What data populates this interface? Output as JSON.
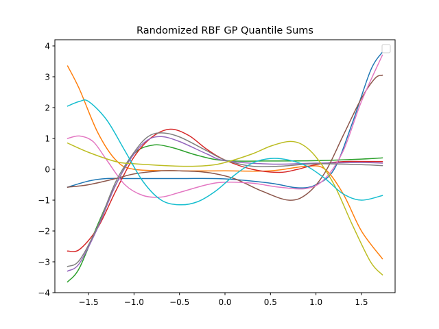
{
  "chart_data": {
    "type": "line",
    "title": "Randomized RBF GP Quantile Sums",
    "xlabel": "",
    "ylabel": "",
    "xlim": [
      -1.87,
      1.87
    ],
    "ylim": [
      -4.0,
      4.2
    ],
    "xticks": [
      -1.5,
      -1.0,
      -0.5,
      0.0,
      0.5,
      1.0,
      1.5
    ],
    "xtick_labels": [
      "−1.5",
      "−1.0",
      "−0.5",
      "0.0",
      "0.5",
      "1.0",
      "1.5"
    ],
    "yticks": [
      -4,
      -3,
      -2,
      -1,
      0,
      1,
      2,
      3,
      4
    ],
    "ytick_labels": [
      "−4",
      "−3",
      "−2",
      "−1",
      "0",
      "1",
      "2",
      "3",
      "4"
    ],
    "grid": false,
    "legend": {
      "position": "upper-right",
      "entries": []
    },
    "series": [
      {
        "color": "#1f77b4",
        "points": [
          [
            -1.73,
            -0.58
          ],
          [
            -1.5,
            -0.38
          ],
          [
            -1.3,
            -0.3
          ],
          [
            -1.0,
            -0.3
          ],
          [
            -0.5,
            -0.3
          ],
          [
            0.0,
            -0.31
          ],
          [
            0.5,
            -0.45
          ],
          [
            0.8,
            -0.6
          ],
          [
            1.0,
            -0.5
          ],
          [
            1.2,
            0.0
          ],
          [
            1.4,
            1.5
          ],
          [
            1.6,
            3.2
          ],
          [
            1.73,
            3.8
          ]
        ]
      },
      {
        "color": "#ff7f0e",
        "points": [
          [
            -1.73,
            3.35
          ],
          [
            -1.6,
            2.6
          ],
          [
            -1.4,
            1.2
          ],
          [
            -1.2,
            0.3
          ],
          [
            -1.0,
            0.0
          ],
          [
            -0.5,
            -0.05
          ],
          [
            0.0,
            -0.05
          ],
          [
            0.5,
            -0.05
          ],
          [
            0.9,
            0.1
          ],
          [
            1.1,
            0.0
          ],
          [
            1.3,
            -0.8
          ],
          [
            1.5,
            -2.0
          ],
          [
            1.73,
            -2.9
          ]
        ]
      },
      {
        "color": "#2ca02c",
        "points": [
          [
            -1.73,
            -3.65
          ],
          [
            -1.6,
            -3.2
          ],
          [
            -1.4,
            -1.8
          ],
          [
            -1.2,
            -0.5
          ],
          [
            -1.0,
            0.5
          ],
          [
            -0.8,
            0.78
          ],
          [
            -0.6,
            0.72
          ],
          [
            -0.3,
            0.45
          ],
          [
            0.0,
            0.28
          ],
          [
            0.5,
            0.27
          ],
          [
            1.0,
            0.28
          ],
          [
            1.5,
            0.33
          ],
          [
            1.73,
            0.37
          ]
        ]
      },
      {
        "color": "#d62728",
        "points": [
          [
            -1.73,
            -2.65
          ],
          [
            -1.6,
            -2.6
          ],
          [
            -1.4,
            -1.9
          ],
          [
            -1.2,
            -0.7
          ],
          [
            -1.0,
            0.4
          ],
          [
            -0.8,
            1.05
          ],
          [
            -0.6,
            1.3
          ],
          [
            -0.4,
            1.1
          ],
          [
            -0.2,
            0.65
          ],
          [
            0.0,
            0.3
          ],
          [
            0.3,
            0.0
          ],
          [
            0.6,
            -0.1
          ],
          [
            0.8,
            0.0
          ],
          [
            1.0,
            0.15
          ],
          [
            1.3,
            0.25
          ],
          [
            1.73,
            0.25
          ]
        ]
      },
      {
        "color": "#9467bd",
        "points": [
          [
            -1.73,
            -3.3
          ],
          [
            -1.6,
            -3.05
          ],
          [
            -1.4,
            -1.9
          ],
          [
            -1.2,
            -0.5
          ],
          [
            -1.0,
            0.5
          ],
          [
            -0.85,
            0.95
          ],
          [
            -0.7,
            1.06
          ],
          [
            -0.5,
            0.9
          ],
          [
            -0.2,
            0.5
          ],
          [
            0.0,
            0.28
          ],
          [
            0.5,
            0.17
          ],
          [
            1.0,
            0.2
          ],
          [
            1.5,
            0.22
          ],
          [
            1.73,
            0.2
          ]
        ]
      },
      {
        "color": "#8c564b",
        "points": [
          [
            -1.73,
            -0.58
          ],
          [
            -1.5,
            -0.5
          ],
          [
            -1.2,
            -0.3
          ],
          [
            -1.0,
            -0.15
          ],
          [
            -0.7,
            -0.05
          ],
          [
            -0.5,
            -0.05
          ],
          [
            -0.2,
            -0.1
          ],
          [
            0.1,
            -0.3
          ],
          [
            0.4,
            -0.7
          ],
          [
            0.7,
            -1.0
          ],
          [
            0.9,
            -0.8
          ],
          [
            1.1,
            -0.1
          ],
          [
            1.3,
            1.1
          ],
          [
            1.5,
            2.3
          ],
          [
            1.65,
            2.95
          ],
          [
            1.73,
            3.05
          ]
        ]
      },
      {
        "color": "#e377c2",
        "points": [
          [
            -1.73,
            1.0
          ],
          [
            -1.6,
            1.08
          ],
          [
            -1.45,
            0.9
          ],
          [
            -1.3,
            0.3
          ],
          [
            -1.1,
            -0.5
          ],
          [
            -0.9,
            -0.85
          ],
          [
            -0.7,
            -0.9
          ],
          [
            -0.5,
            -0.75
          ],
          [
            -0.2,
            -0.5
          ],
          [
            0.0,
            -0.42
          ],
          [
            0.3,
            -0.45
          ],
          [
            0.6,
            -0.58
          ],
          [
            0.9,
            -0.62
          ],
          [
            1.1,
            -0.3
          ],
          [
            1.3,
            0.6
          ],
          [
            1.5,
            2.2
          ],
          [
            1.73,
            3.7
          ]
        ]
      },
      {
        "color": "#7f7f7f",
        "points": [
          [
            -1.73,
            -3.15
          ],
          [
            -1.6,
            -2.95
          ],
          [
            -1.4,
            -1.85
          ],
          [
            -1.2,
            -0.4
          ],
          [
            -1.0,
            0.55
          ],
          [
            -0.85,
            1.05
          ],
          [
            -0.7,
            1.18
          ],
          [
            -0.5,
            1.05
          ],
          [
            -0.2,
            0.6
          ],
          [
            0.0,
            0.3
          ],
          [
            0.3,
            0.1
          ],
          [
            0.6,
            0.1
          ],
          [
            1.0,
            0.18
          ],
          [
            1.5,
            0.15
          ],
          [
            1.73,
            0.12
          ]
        ]
      },
      {
        "color": "#bcbd22",
        "points": [
          [
            -1.73,
            0.85
          ],
          [
            -1.5,
            0.55
          ],
          [
            -1.2,
            0.25
          ],
          [
            -1.0,
            0.18
          ],
          [
            -0.5,
            0.1
          ],
          [
            -0.2,
            0.12
          ],
          [
            0.0,
            0.22
          ],
          [
            0.3,
            0.5
          ],
          [
            0.5,
            0.75
          ],
          [
            0.7,
            0.9
          ],
          [
            0.85,
            0.8
          ],
          [
            1.0,
            0.4
          ],
          [
            1.2,
            -0.5
          ],
          [
            1.4,
            -1.8
          ],
          [
            1.6,
            -3.0
          ],
          [
            1.73,
            -3.42
          ]
        ]
      },
      {
        "color": "#17becf",
        "points": [
          [
            -1.73,
            2.05
          ],
          [
            -1.6,
            2.2
          ],
          [
            -1.5,
            2.2
          ],
          [
            -1.3,
            1.6
          ],
          [
            -1.1,
            0.6
          ],
          [
            -0.9,
            -0.4
          ],
          [
            -0.7,
            -1.0
          ],
          [
            -0.5,
            -1.15
          ],
          [
            -0.3,
            -1.05
          ],
          [
            -0.1,
            -0.7
          ],
          [
            0.1,
            -0.2
          ],
          [
            0.3,
            0.2
          ],
          [
            0.5,
            0.35
          ],
          [
            0.7,
            0.3
          ],
          [
            0.9,
            0.1
          ],
          [
            1.1,
            -0.3
          ],
          [
            1.3,
            -0.8
          ],
          [
            1.5,
            -1.0
          ],
          [
            1.73,
            -0.85
          ]
        ]
      }
    ]
  }
}
